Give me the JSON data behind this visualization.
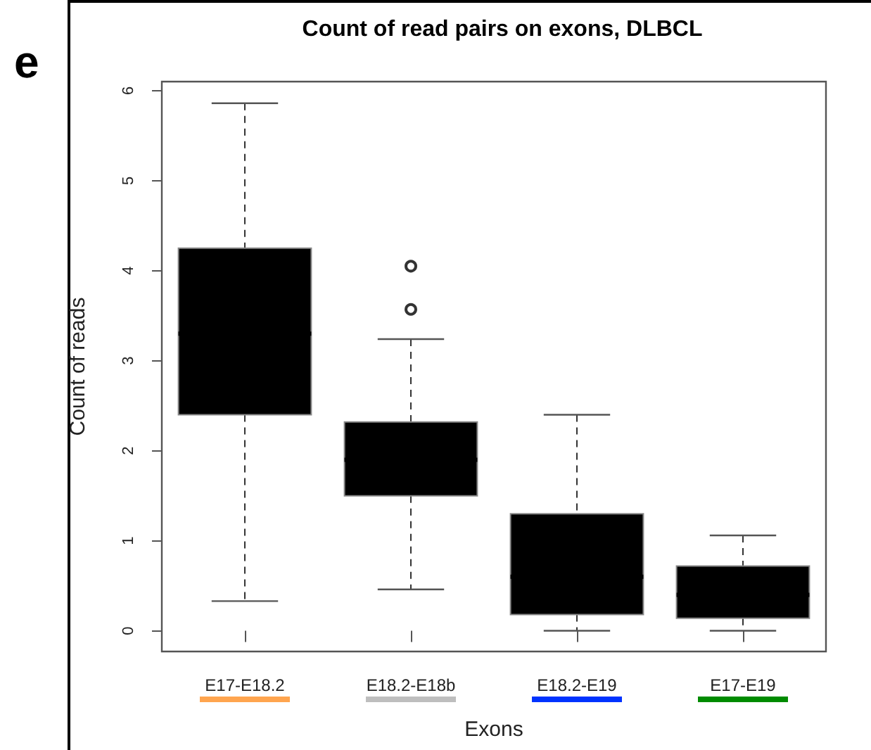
{
  "chart_data": {
    "type": "box",
    "title": "Count of read pairs on exons, DLBCL",
    "xlabel": "Exons",
    "ylabel": "Count of reads",
    "categories": [
      "E17-E18.2",
      "E18.2-E18b",
      "E18.2-E19",
      "E17-E19"
    ],
    "boxes": [
      {
        "low": 0.33,
        "q1": 2.4,
        "median": 3.3,
        "q3": 4.25,
        "high": 5.86
      },
      {
        "low": 0.46,
        "q1": 1.5,
        "median": 1.9,
        "q3": 2.32,
        "high": 3.24,
        "outliers": [
          4.05,
          3.57
        ]
      },
      {
        "low": 0,
        "q1": 0.18,
        "median": 0.6,
        "q3": 1.3,
        "high": 2.4
      },
      {
        "low": 0,
        "q1": 0.14,
        "median": 0.4,
        "q3": 0.72,
        "high": 1.06
      }
    ],
    "color": "#000000",
    "ylim": [
      -0.23,
      6.1
    ],
    "yticks": [
      0,
      1,
      2,
      3,
      4,
      5,
      6
    ],
    "annotations": [
      "e"
    ]
  }
}
